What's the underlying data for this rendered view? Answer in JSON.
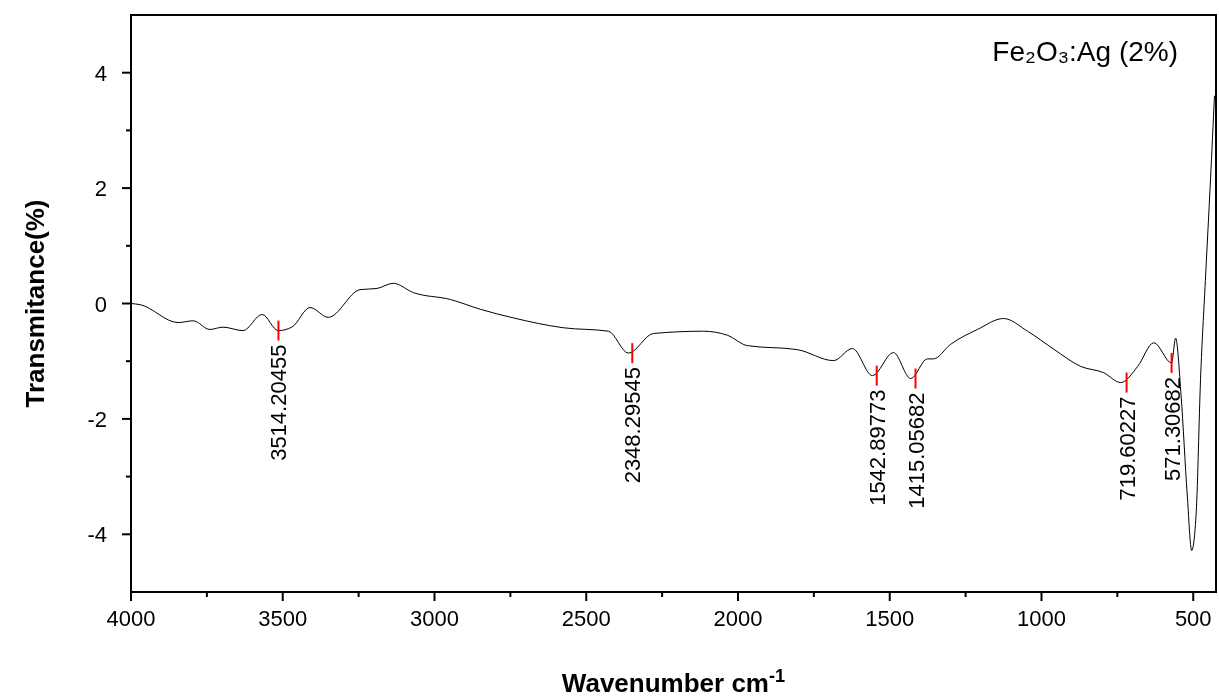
{
  "chart_data": {
    "type": "line",
    "title": "Fe₂O₃:Ag (2%)",
    "xlabel": "Wavenumber cm$^{-1}$",
    "ylabel": "Transmitance(%)",
    "xlim": [
      4000,
      425
    ],
    "ylim": [
      -5,
      5
    ],
    "xticks": [
      4000,
      {
        "value": 3750,
        "label": null
      },
      3500,
      {
        "value": 3250,
        "label": null
      },
      3000,
      {
        "value": 2750,
        "label": null
      },
      2500,
      {
        "value": 2250,
        "label": null
      },
      2000,
      {
        "value": 1750,
        "label": null
      },
      1500,
      {
        "value": 1250,
        "label": null
      },
      1000,
      {
        "value": 750,
        "label": null
      },
      500
    ],
    "yticks": [
      -4,
      {
        "value": -3,
        "label": null
      },
      -2,
      {
        "value": -1,
        "label": null
      },
      0,
      {
        "value": 1,
        "label": null
      },
      2,
      {
        "value": 3,
        "label": null
      },
      4
    ],
    "grid": false,
    "marker": "none",
    "line_style": "solid",
    "series": [
      {
        "color": "#000000",
        "x": [
          4000,
          3970,
          3845,
          3795,
          3740,
          3697,
          3631,
          3568,
          3515,
          3470,
          3410,
          3350,
          3245,
          3190,
          3136,
          3070,
          2948,
          2849,
          2740,
          2576,
          2427,
          2361,
          2279,
          2114,
          2035,
          1969,
          1804,
          1685,
          1623,
          1557,
          1488,
          1431,
          1376,
          1356,
          1300,
          1211,
          1125,
          1046,
          960,
          871,
          795,
          739,
          683,
          630,
          571.3,
          558,
          540,
          520,
          505,
          490,
          476,
          460,
          443,
          430
        ],
        "values": [
          0,
          -0.02,
          -0.33,
          -0.3,
          -0.45,
          -0.41,
          -0.47,
          -0.19,
          -0.47,
          -0.41,
          -0.07,
          -0.24,
          0.24,
          0.26,
          0.35,
          0.19,
          0.07,
          -0.1,
          -0.25,
          -0.42,
          -0.48,
          -0.86,
          -0.52,
          -0.48,
          -0.55,
          -0.73,
          -0.8,
          -0.99,
          -0.78,
          -1.25,
          -0.85,
          -1.3,
          -0.96,
          -0.96,
          -0.71,
          -0.45,
          -0.26,
          -0.48,
          -0.79,
          -1.09,
          -1.2,
          -1.37,
          -1.09,
          -0.68,
          -1.03,
          -0.6,
          -1.6,
          -3.3,
          -4.28,
          -3.6,
          -1.32,
          0.4,
          2.16,
          3.6
        ]
      }
    ],
    "annotations": [
      {
        "text": "3514.20455",
        "x": 3514.20455,
        "y": -0.47
      },
      {
        "text": "2348.29545",
        "x": 2348.29545,
        "y": -0.86
      },
      {
        "text": "1542.89773",
        "x": 1542.89773,
        "y": -1.25
      },
      {
        "text": "1415.05682",
        "x": 1415.05682,
        "y": -1.3
      },
      {
        "text": "719.60227",
        "x": 719.60227,
        "y": -1.37
      },
      {
        "text": "571.30682",
        "x": 571.3,
        "y": -1.03
      }
    ]
  }
}
